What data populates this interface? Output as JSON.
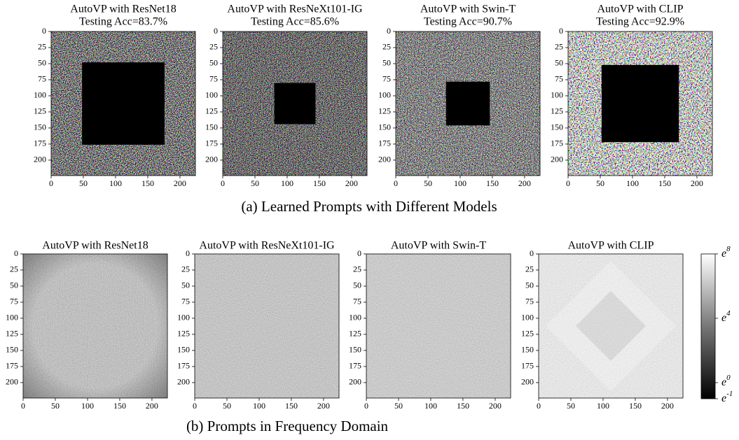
{
  "axes": {
    "xlim": [
      0,
      224
    ],
    "ylim": [
      0,
      224
    ],
    "xticks": [
      0,
      50,
      100,
      150,
      200
    ],
    "yticks": [
      0,
      25,
      50,
      75,
      100,
      125,
      150,
      175,
      200
    ]
  },
  "figure_a": {
    "caption": "(a) Learned Prompts with Different Models",
    "panels": [
      {
        "title": "AutoVP with ResNet18",
        "subtitle": "Testing Acc=83.7%"
      },
      {
        "title": "AutoVP with ResNeXt101-IG",
        "subtitle": "Testing Acc=85.6%"
      },
      {
        "title": "AutoVP with Swin-T",
        "subtitle": "Testing Acc=90.7%"
      },
      {
        "title": "AutoVP with CLIP",
        "subtitle": "Testing Acc=92.9%"
      }
    ]
  },
  "figure_b": {
    "caption": "(b) Prompts in Frequency Domain",
    "panels": [
      {
        "title": "AutoVP with ResNet18"
      },
      {
        "title": "AutoVP with ResNeXt101-IG"
      },
      {
        "title": "AutoVP with Swin-T"
      },
      {
        "title": "AutoVP with CLIP"
      }
    ],
    "colorbar": {
      "base": "e",
      "lim": [
        -1,
        8
      ],
      "ticks": [
        8,
        4,
        0,
        -1
      ]
    }
  }
}
